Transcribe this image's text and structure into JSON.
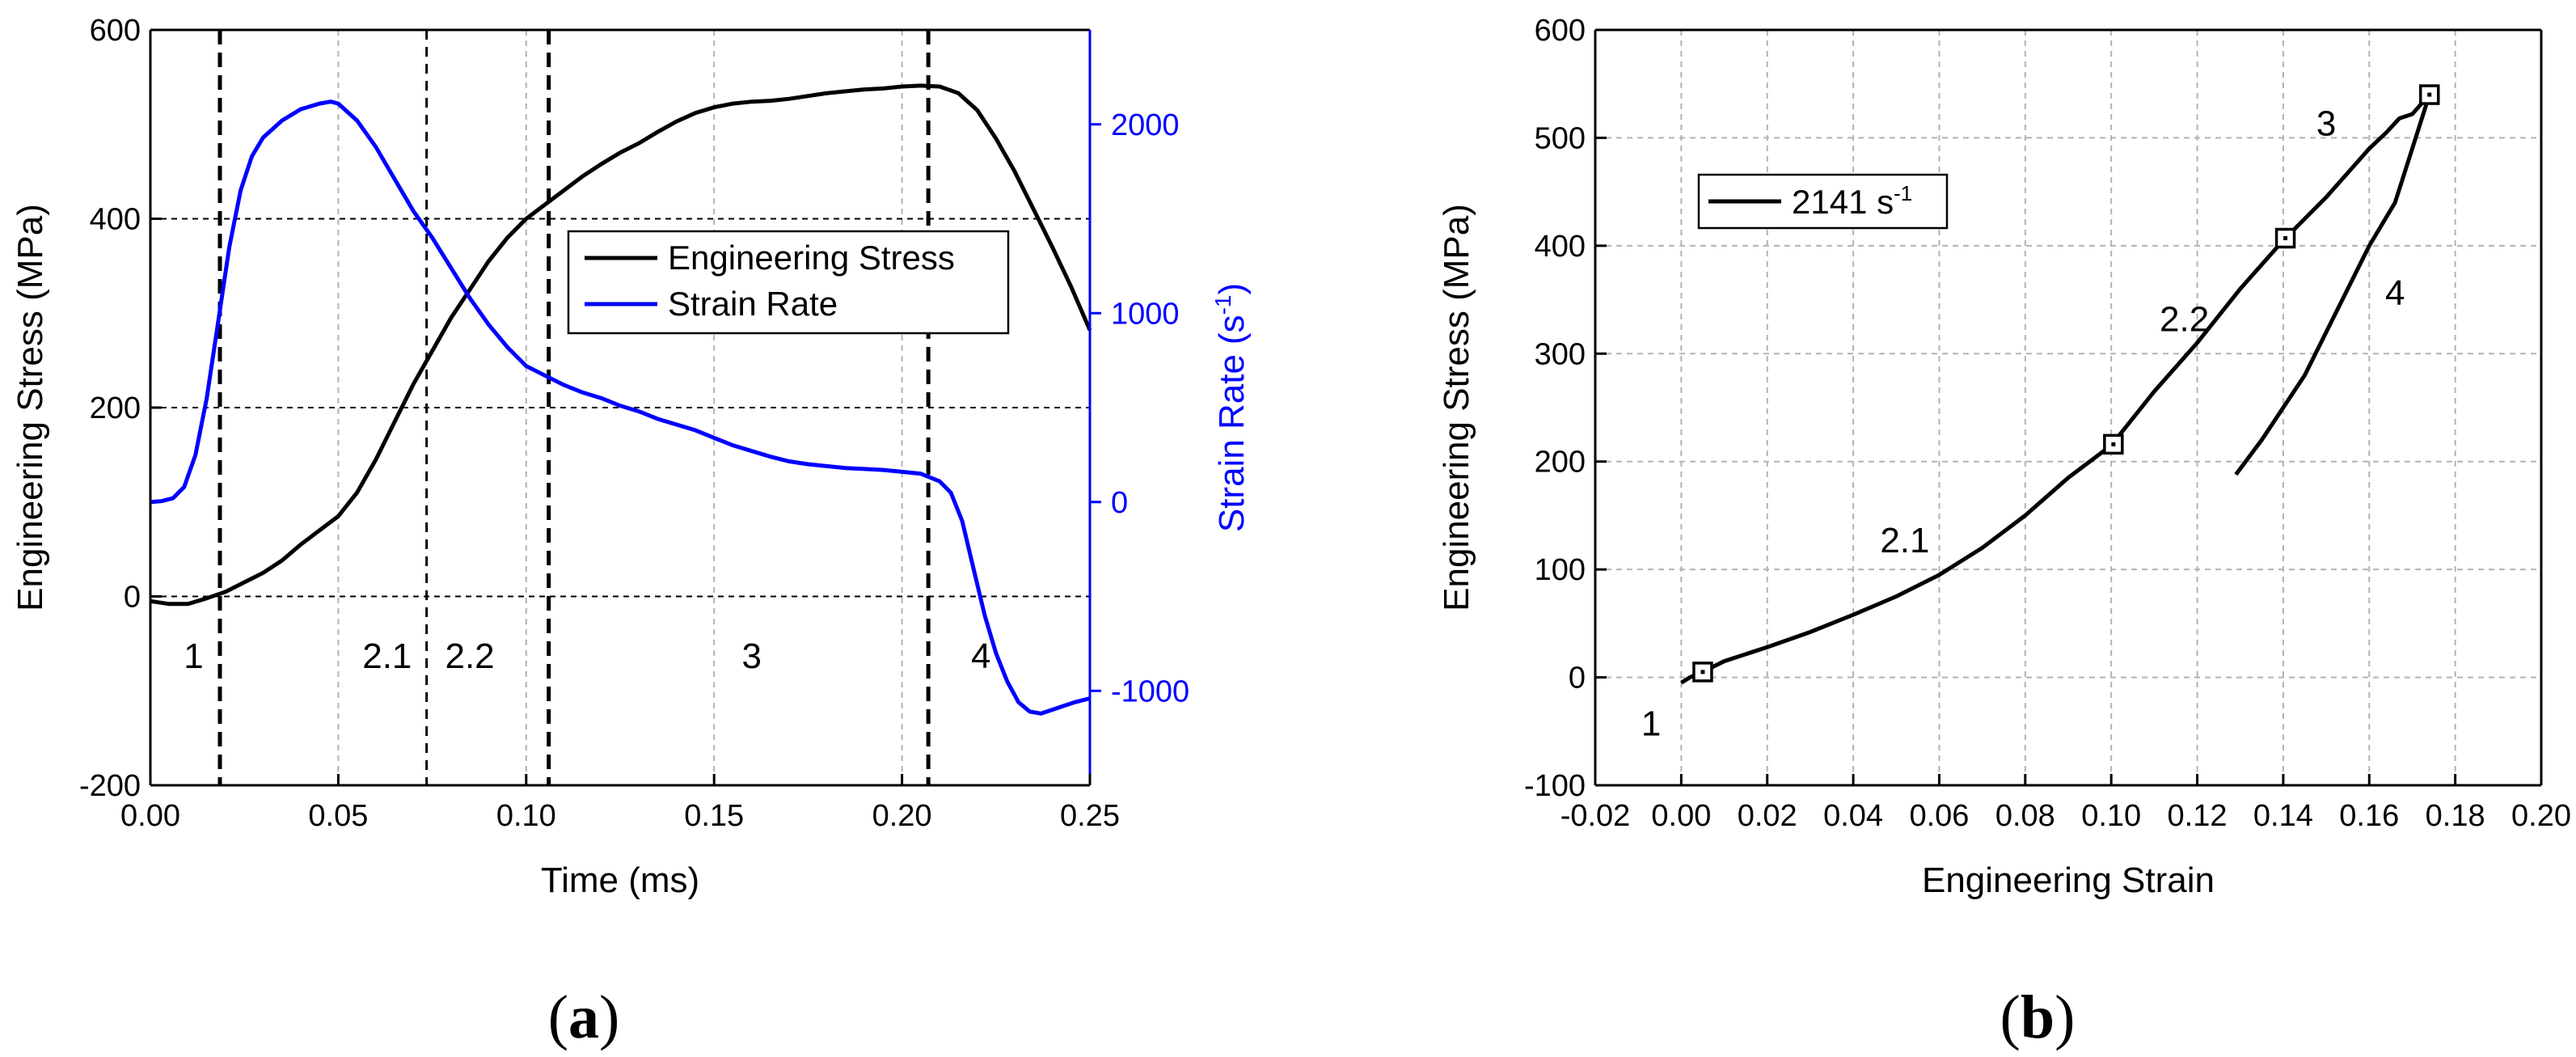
{
  "chart_data": [
    {
      "id": "a",
      "panel_label": "a",
      "type": "line",
      "xlabel": "Time (ms)",
      "ylabel": "Engineering Stress (MPa)",
      "y2label": "Strain Rate",
      "y2label_unit": "(s",
      "y2label_exp": "-1",
      "y2label_close": ")",
      "xlim": [
        0,
        0.25
      ],
      "ylim": [
        -200,
        600
      ],
      "y2lim": [
        -1500,
        2500
      ],
      "xticks": [
        0.0,
        0.05,
        0.1,
        0.15,
        0.2,
        0.25
      ],
      "xtick_labels": [
        "0.00",
        "0.05",
        "0.10",
        "0.15",
        "0.20",
        "0.25"
      ],
      "yticks": [
        -200,
        0,
        200,
        400,
        600
      ],
      "ytick_labels": [
        "-200",
        "0",
        "200",
        "400",
        "600"
      ],
      "y2ticks": [
        -1000,
        0,
        1000,
        2000
      ],
      "y2tick_labels": [
        "-1000",
        "0",
        "1000",
        "2000"
      ],
      "grid": true,
      "hlines": [
        0,
        200,
        400
      ],
      "vlines": [
        0.0185,
        0.0735,
        0.106,
        0.207
      ],
      "vline_bold": [
        true,
        false,
        true,
        true
      ],
      "regions": [
        {
          "label": "1",
          "x": 0.0115
        },
        {
          "label": "2.1",
          "x": 0.063
        },
        {
          "label": "2.2",
          "x": 0.085
        },
        {
          "label": "3",
          "x": 0.16
        },
        {
          "label": "4",
          "x": 0.221
        }
      ],
      "region_label_y": -62,
      "legend_position": "center-right",
      "series": [
        {
          "name": "Engineering Stress",
          "axis": "left",
          "color": "#000000",
          "x": [
            0,
            0.005,
            0.01,
            0.015,
            0.02,
            0.025,
            0.03,
            0.035,
            0.04,
            0.045,
            0.05,
            0.055,
            0.06,
            0.065,
            0.07,
            0.075,
            0.08,
            0.085,
            0.09,
            0.095,
            0.1,
            0.105,
            0.11,
            0.115,
            0.12,
            0.125,
            0.13,
            0.135,
            0.14,
            0.145,
            0.15,
            0.155,
            0.16,
            0.165,
            0.17,
            0.175,
            0.18,
            0.185,
            0.19,
            0.195,
            0.2,
            0.205,
            0.21,
            0.215,
            0.22,
            0.225,
            0.23,
            0.235,
            0.24,
            0.245,
            0.25
          ],
          "values": [
            -5,
            -8,
            -8,
            -2,
            5,
            15,
            25,
            38,
            55,
            70,
            85,
            110,
            145,
            185,
            225,
            260,
            295,
            325,
            355,
            380,
            400,
            415,
            430,
            445,
            458,
            470,
            480,
            492,
            503,
            512,
            518,
            522,
            524,
            525,
            527,
            530,
            533,
            535,
            537,
            538,
            540,
            541,
            540,
            533,
            515,
            485,
            450,
            410,
            370,
            328,
            282
          ]
        },
        {
          "name": "Strain Rate",
          "axis": "right",
          "color": "#0000ff",
          "x": [
            0,
            0.003,
            0.006,
            0.009,
            0.012,
            0.015,
            0.018,
            0.021,
            0.024,
            0.027,
            0.03,
            0.035,
            0.04,
            0.045,
            0.048,
            0.05,
            0.055,
            0.06,
            0.065,
            0.07,
            0.075,
            0.08,
            0.085,
            0.09,
            0.095,
            0.1,
            0.105,
            0.11,
            0.115,
            0.12,
            0.125,
            0.13,
            0.135,
            0.14,
            0.145,
            0.15,
            0.155,
            0.16,
            0.165,
            0.17,
            0.175,
            0.18,
            0.185,
            0.19,
            0.195,
            0.2,
            0.205,
            0.21,
            0.213,
            0.216,
            0.219,
            0.222,
            0.225,
            0.228,
            0.231,
            0.234,
            0.237,
            0.24,
            0.243,
            0.246,
            0.25
          ],
          "values": [
            0,
            5,
            20,
            80,
            250,
            550,
            950,
            1350,
            1650,
            1830,
            1930,
            2020,
            2080,
            2110,
            2120,
            2110,
            2020,
            1880,
            1710,
            1540,
            1400,
            1240,
            1080,
            940,
            820,
            720,
            670,
            620,
            580,
            550,
            510,
            480,
            440,
            410,
            380,
            340,
            300,
            270,
            240,
            215,
            200,
            190,
            180,
            175,
            170,
            160,
            150,
            110,
            50,
            -100,
            -350,
            -600,
            -800,
            -950,
            -1060,
            -1110,
            -1120,
            -1100,
            -1080,
            -1060,
            -1040
          ]
        }
      ]
    },
    {
      "id": "b",
      "panel_label": "b",
      "type": "line",
      "xlabel": "Engineering Strain",
      "ylabel": "Engineering Stress (MPa)",
      "xlim": [
        -0.02,
        0.2
      ],
      "ylim": [
        -100,
        600
      ],
      "xticks": [
        -0.02,
        0.0,
        0.02,
        0.04,
        0.06,
        0.08,
        0.1,
        0.12,
        0.14,
        0.16,
        0.18,
        0.2
      ],
      "xtick_labels": [
        "-0.02",
        "0.00",
        "0.02",
        "0.04",
        "0.06",
        "0.08",
        "0.10",
        "0.12",
        "0.14",
        "0.16",
        "0.18",
        "0.20"
      ],
      "yticks": [
        -100,
        0,
        100,
        200,
        300,
        400,
        500,
        600
      ],
      "ytick_labels": [
        "-100",
        "0",
        "100",
        "200",
        "300",
        "400",
        "500",
        "600"
      ],
      "grid": true,
      "legend_position": "top-left",
      "legend_label": "2141 s",
      "legend_exp": "-1",
      "series": [
        {
          "name": "2141 s-1",
          "color": "#000000",
          "x": [
            0.0,
            0.002,
            0.005,
            0.01,
            0.02,
            0.03,
            0.04,
            0.05,
            0.06,
            0.07,
            0.08,
            0.09,
            0.1,
            0.11,
            0.12,
            0.13,
            0.14,
            0.15,
            0.16,
            0.164,
            0.167,
            0.17,
            0.174,
            0.17,
            0.166,
            0.16,
            0.155,
            0.15,
            0.145,
            0.14,
            0.135,
            0.129
          ],
          "values": [
            -5,
            0,
            5,
            15,
            28,
            42,
            58,
            75,
            95,
            120,
            150,
            185,
            215,
            265,
            310,
            360,
            405,
            445,
            490,
            505,
            518,
            522,
            540,
            490,
            440,
            400,
            360,
            320,
            280,
            250,
            220,
            188
          ]
        }
      ],
      "markers": [
        {
          "x": 0.005,
          "y": 5
        },
        {
          "x": 0.1005,
          "y": 216
        },
        {
          "x": 0.1405,
          "y": 407
        },
        {
          "x": 0.174,
          "y": 540
        }
      ],
      "annotations": [
        {
          "label": "1",
          "x": -0.007,
          "y": -42
        },
        {
          "label": "2.1",
          "x": 0.052,
          "y": 128
        },
        {
          "label": "2.2",
          "x": 0.117,
          "y": 333
        },
        {
          "label": "3",
          "x": 0.15,
          "y": 514
        },
        {
          "label": "4",
          "x": 0.166,
          "y": 357
        }
      ]
    }
  ]
}
